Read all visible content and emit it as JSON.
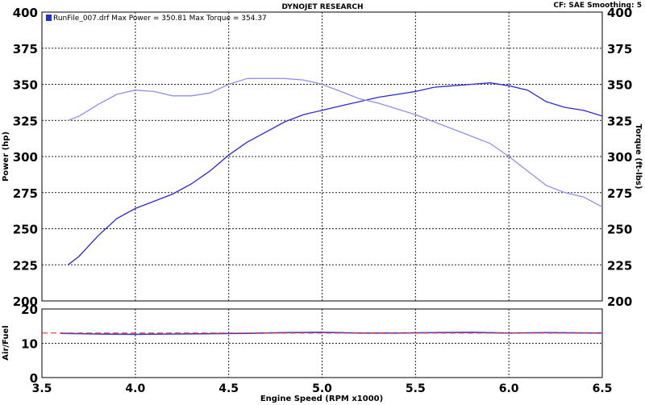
{
  "header": {
    "title": "DYNOJET RESEARCH",
    "settings": "CF: SAE  Smoothing: 5"
  },
  "legend": {
    "text": "RunFile_007.drf Max Power = 350.81    Max Torque = 354.37",
    "swatch_color": "#2233cc"
  },
  "colors": {
    "power": "#2a2ad0",
    "torque": "#8f8fef",
    "afr": "#3a3acc",
    "target_afr": "#e23030",
    "grid": "#222222"
  },
  "chart_data": [
    {
      "type": "line",
      "xlim": [
        3.5,
        6.5
      ],
      "ylim": [
        200,
        400
      ],
      "ylim_right": [
        200,
        400
      ],
      "ylabel": "Power (hp)",
      "ylabel_right": "Torque (ft-lbs)",
      "yticks": [
        200,
        225,
        250,
        275,
        300,
        325,
        350,
        375,
        400
      ],
      "grid": true,
      "legend": "top-left",
      "series": [
        {
          "name": "Power",
          "x": [
            3.64,
            3.7,
            3.8,
            3.9,
            4.0,
            4.1,
            4.2,
            4.3,
            4.4,
            4.5,
            4.6,
            4.7,
            4.8,
            4.9,
            5.0,
            5.1,
            5.2,
            5.3,
            5.4,
            5.5,
            5.6,
            5.7,
            5.8,
            5.9,
            6.0,
            6.1,
            6.2,
            6.3,
            6.4,
            6.5
          ],
          "y": [
            225,
            231,
            245,
            257,
            264,
            269,
            274,
            281,
            290,
            301,
            310,
            317,
            324,
            329,
            332,
            335,
            338,
            341,
            343,
            345,
            348,
            349,
            350,
            351,
            349,
            346,
            338,
            334,
            332,
            328
          ]
        },
        {
          "name": "Torque",
          "x": [
            3.64,
            3.7,
            3.8,
            3.9,
            4.0,
            4.1,
            4.2,
            4.3,
            4.4,
            4.5,
            4.6,
            4.7,
            4.8,
            4.9,
            5.0,
            5.1,
            5.2,
            5.3,
            5.4,
            5.5,
            5.6,
            5.7,
            5.8,
            5.9,
            6.0,
            6.1,
            6.2,
            6.3,
            6.4,
            6.5
          ],
          "y": [
            325,
            328,
            336,
            343,
            346,
            345,
            342,
            342,
            344,
            350,
            354,
            354,
            354,
            353,
            350,
            345,
            340,
            337,
            333,
            329,
            324,
            319,
            314,
            309,
            300,
            290,
            280,
            275,
            272,
            265
          ]
        }
      ]
    },
    {
      "type": "line",
      "xlim": [
        3.5,
        6.5
      ],
      "ylim": [
        0,
        20
      ],
      "xlabel": "Engine Speed (RPM x1000)",
      "ylabel": "Air/Fuel",
      "xticks": [
        3.5,
        4.0,
        4.5,
        5.0,
        5.5,
        6.0,
        6.5
      ],
      "yticks": [
        0,
        10,
        20
      ],
      "grid": true,
      "series": [
        {
          "name": "Air/Fuel",
          "x": [
            3.6,
            3.8,
            4.0,
            4.2,
            4.4,
            4.6,
            4.8,
            5.0,
            5.2,
            5.4,
            5.6,
            5.8,
            6.0,
            6.2,
            6.5
          ],
          "y": [
            12.9,
            12.7,
            12.6,
            12.7,
            12.8,
            12.9,
            13.1,
            13.2,
            13.0,
            13.0,
            13.1,
            13.2,
            13.0,
            13.1,
            13.0
          ]
        },
        {
          "name": "Target",
          "x": [
            3.5,
            6.5
          ],
          "y": [
            13.0,
            13.0
          ]
        }
      ]
    }
  ]
}
